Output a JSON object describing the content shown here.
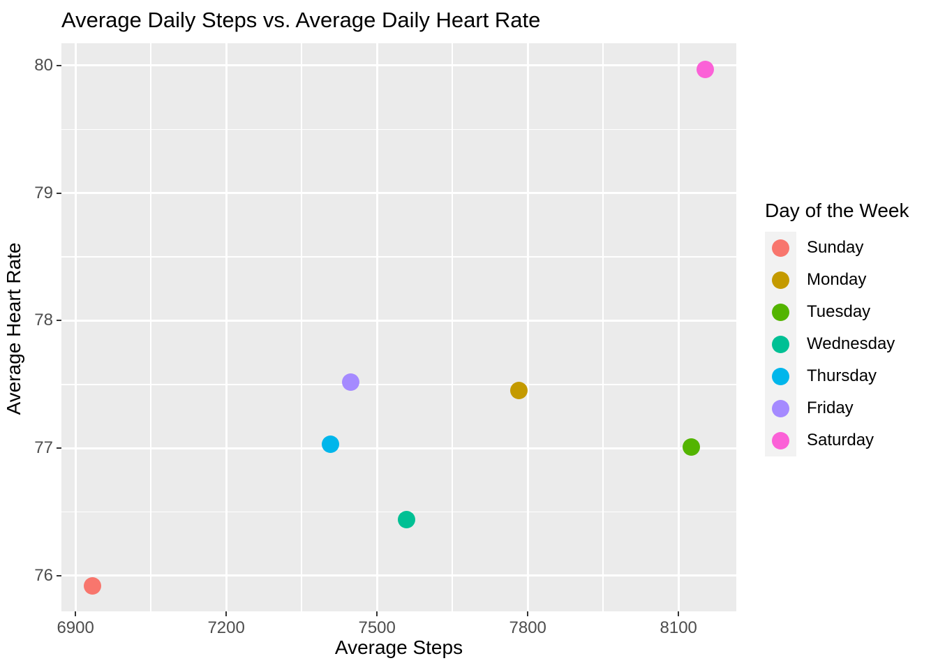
{
  "title": "Average Daily Steps vs. Average Daily Heart Rate",
  "chart_data": {
    "type": "scatter",
    "title": "Average Daily Steps vs. Average Daily Heart Rate",
    "xlabel": "Average Steps",
    "ylabel": "Average Heart Rate",
    "legend_title": "Day of the Week",
    "legend_position": "right",
    "grid": true,
    "xlim": [
      6872,
      8215
    ],
    "ylim": [
      75.72,
      80.175
    ],
    "x_major_ticks": [
      6900,
      7200,
      7500,
      7800,
      8100
    ],
    "x_minor_gridlines": [
      7050,
      7350,
      7650,
      7950
    ],
    "y_major_ticks": [
      76,
      77,
      78,
      79,
      80
    ],
    "y_minor_gridlines": [
      76.5,
      77.5,
      78.5,
      79.5
    ],
    "points": [
      {
        "label": "Sunday",
        "x": 6934,
        "y": 75.92,
        "color": "#F8766D"
      },
      {
        "label": "Monday",
        "x": 7782,
        "y": 77.45,
        "color": "#C49A00"
      },
      {
        "label": "Tuesday",
        "x": 8125,
        "y": 77.01,
        "color": "#53B400"
      },
      {
        "label": "Wednesday",
        "x": 7559,
        "y": 76.44,
        "color": "#00C094"
      },
      {
        "label": "Thursday",
        "x": 7407,
        "y": 77.03,
        "color": "#00B6EB"
      },
      {
        "label": "Friday",
        "x": 7448,
        "y": 77.52,
        "color": "#A58AFF"
      },
      {
        "label": "Saturday",
        "x": 8153,
        "y": 79.97,
        "color": "#FB61D7"
      }
    ],
    "colors": {
      "panel_bg": "#EBEBEB",
      "gridline": "#FFFFFF",
      "tick_text": "#4D4D4D",
      "tick_mark": "#333333",
      "legend_key_bg": "#F2F2F2",
      "figure_bg": "#FFFFFF"
    }
  }
}
